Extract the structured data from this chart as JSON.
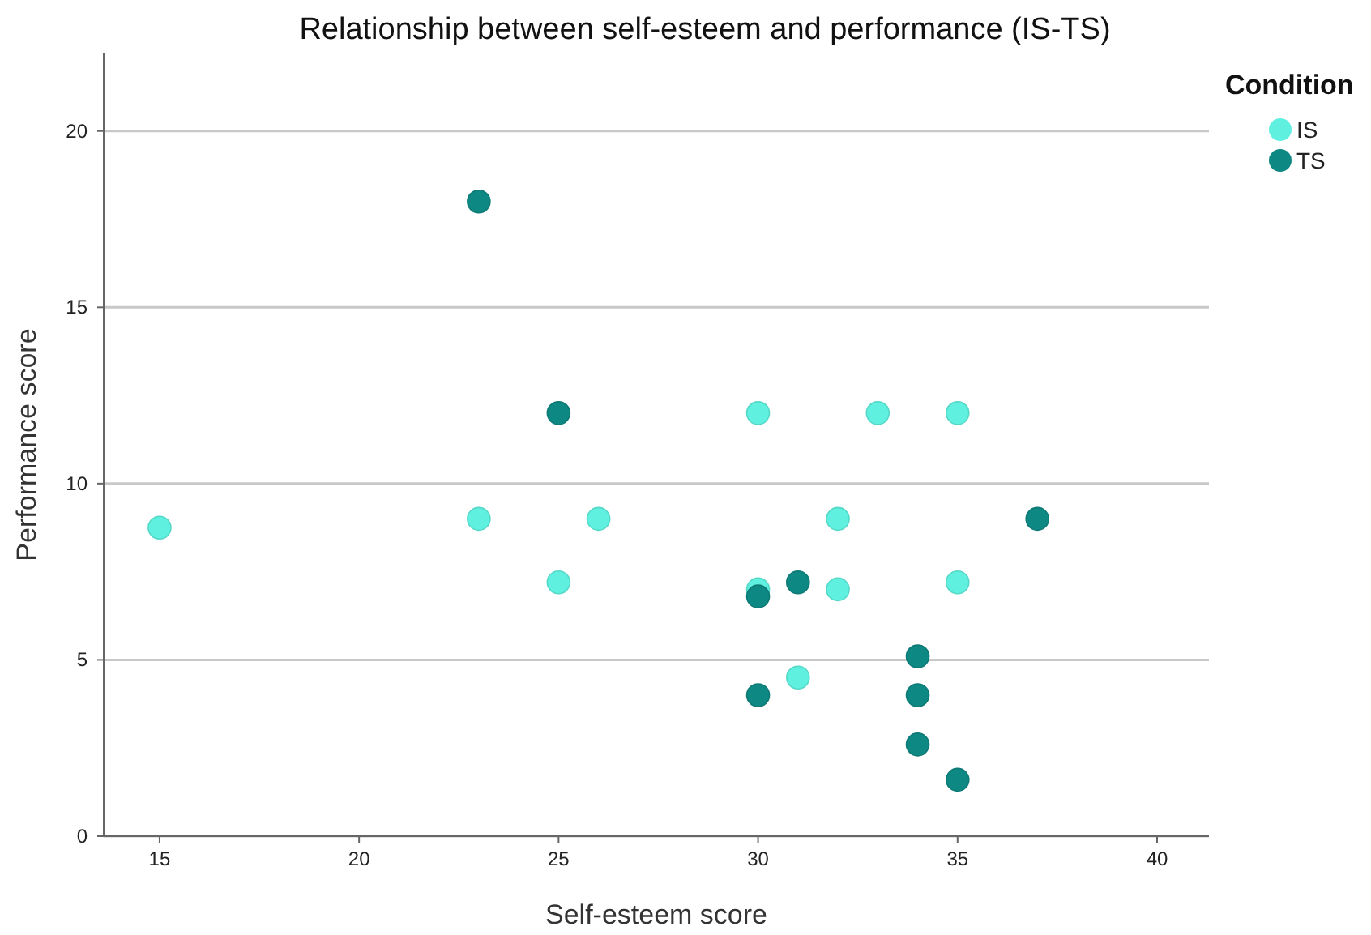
{
  "chart_data": {
    "type": "scatter",
    "title": "Relationship between self-esteem and performance (IS-TS)",
    "xlabel": "Self-esteem score",
    "ylabel": "Performance score",
    "legend_title": "Condition",
    "legend": "top right",
    "grid": "y",
    "marker": "circle",
    "xlim": [
      13.6,
      41.3
    ],
    "xticks": [
      15,
      20,
      25,
      30,
      35,
      40
    ],
    "ylim": [
      0,
      22.2
    ],
    "yticks": [
      0,
      5,
      10,
      15,
      20
    ],
    "series": [
      {
        "name": "IS",
        "color": "#5ff0df",
        "x": [
          15,
          23,
          25,
          26,
          30,
          30,
          31,
          32,
          32,
          33,
          35,
          35
        ],
        "values": [
          8.75,
          9,
          7.2,
          9,
          12,
          7,
          4.5,
          9,
          7,
          12,
          12,
          7.2
        ]
      },
      {
        "name": "TS",
        "color": "#0e8883",
        "x": [
          23,
          25,
          30,
          30,
          31,
          34,
          34,
          34,
          35,
          37
        ],
        "values": [
          18,
          12,
          6.8,
          4,
          7.2,
          5.1,
          4,
          2.6,
          1.6,
          9
        ]
      }
    ]
  }
}
